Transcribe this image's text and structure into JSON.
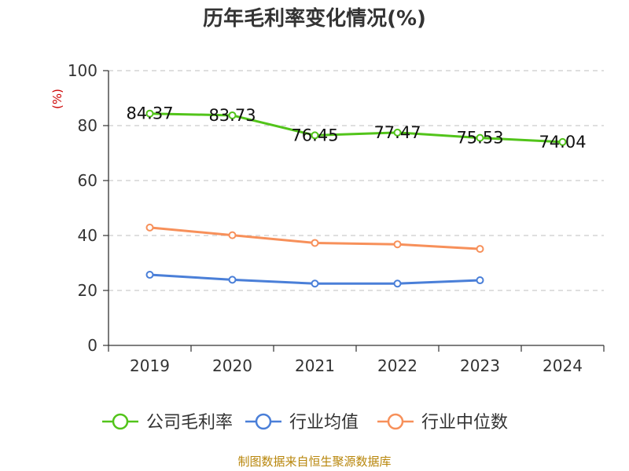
{
  "title": "历年毛利率变化情况(%)",
  "unit_label": "(%)",
  "source": "制图数据来自恒生聚源数据库",
  "chart_data": {
    "type": "line",
    "title": "历年毛利率变化情况(%)",
    "ylabel": "(%)",
    "xlabel": "",
    "categories": [
      "2019",
      "2020",
      "2021",
      "2022",
      "2023",
      "2024"
    ],
    "ylim": [
      0,
      100
    ],
    "yticks": [
      0,
      20,
      40,
      60,
      80,
      100
    ],
    "grid": true,
    "legend_position": "bottom",
    "series": [
      {
        "name": "公司毛利率",
        "color": "#52c41a",
        "values": [
          84.37,
          83.73,
          76.45,
          77.47,
          75.53,
          74.04
        ],
        "labels": [
          "84.37",
          "83.73",
          "76.45",
          "77.47",
          "75.53",
          "74.04"
        ]
      },
      {
        "name": "行业均值",
        "color": "#4a7fd8",
        "values": [
          25.7,
          23.9,
          22.5,
          22.5,
          23.7,
          null
        ]
      },
      {
        "name": "行业中位数",
        "color": "#f7905a",
        "values": [
          42.9,
          40.1,
          37.3,
          36.8,
          35.1,
          null
        ]
      }
    ]
  }
}
